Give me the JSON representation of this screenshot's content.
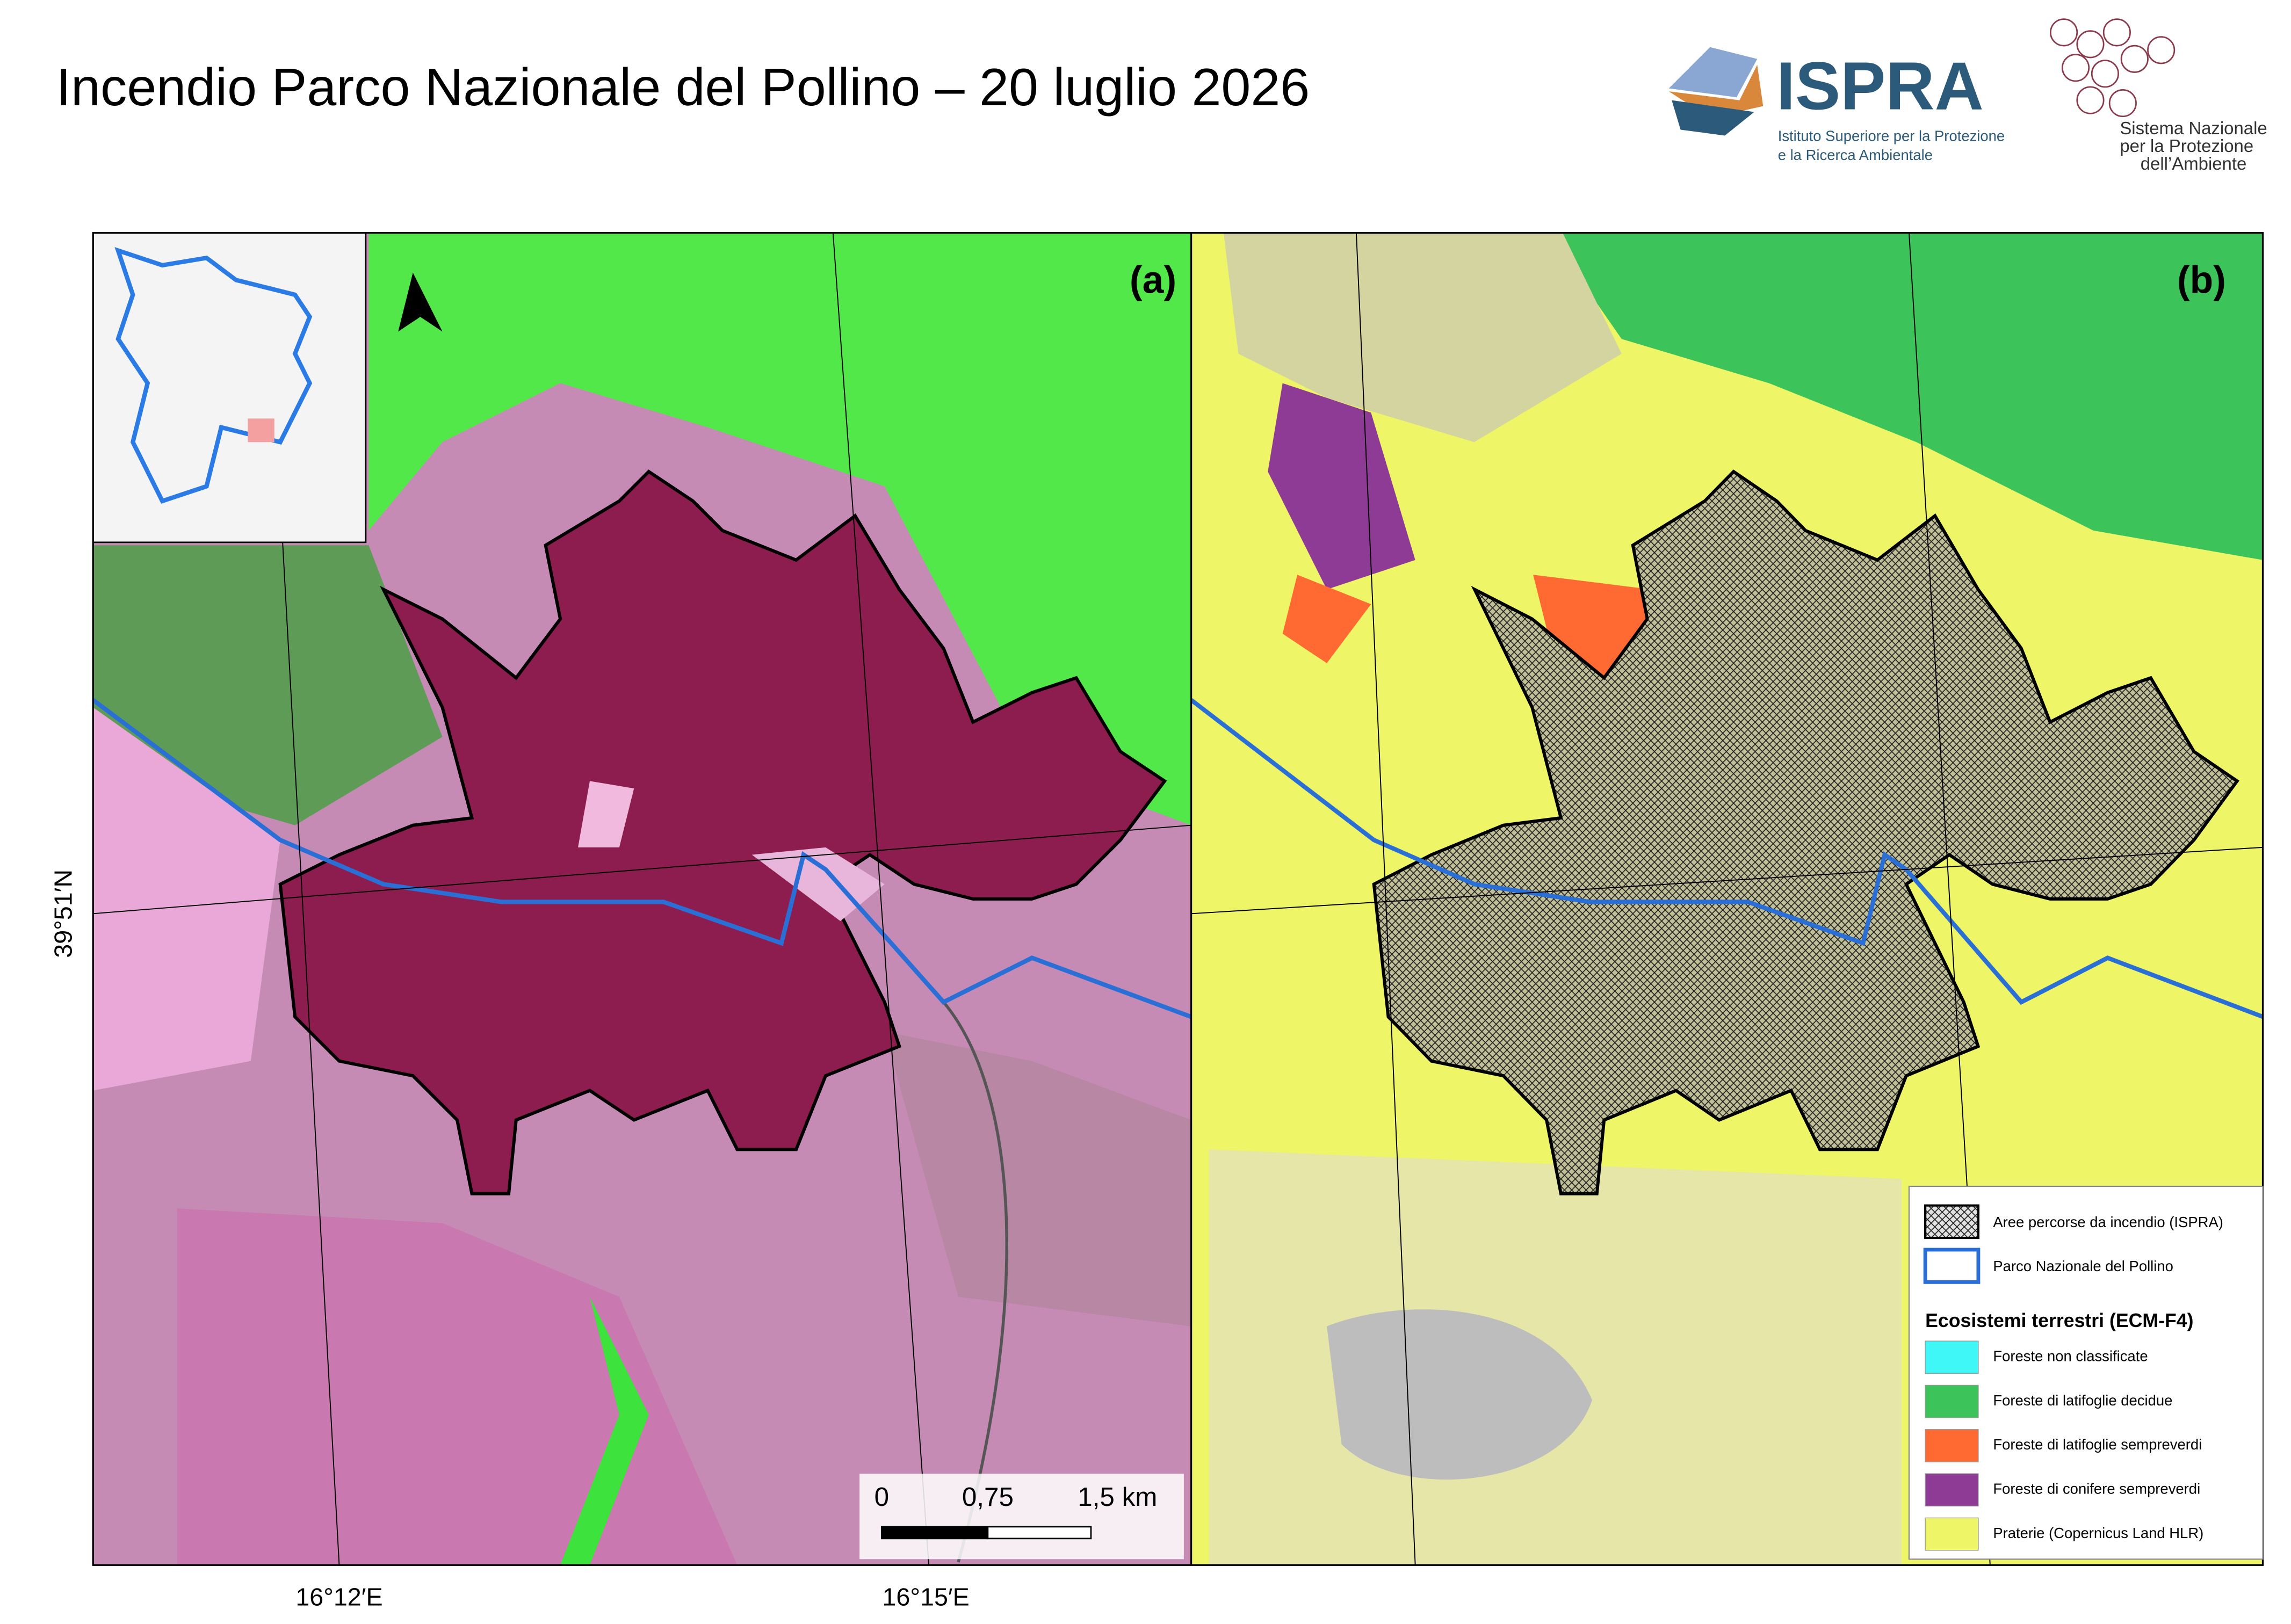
{
  "header": {
    "title": "Incendio Parco Nazionale del Pollino – 20 luglio 2026"
  },
  "logos": {
    "ispra": {
      "name": "ISPRA",
      "subtitle": [
        "Istituto Superiore per la Protezione",
        "e la Ricerca Ambientale"
      ]
    },
    "snpa": {
      "lines": [
        "Sistema Nazionale",
        "per la Protezione",
        "dell’Ambiente"
      ]
    }
  },
  "maps": {
    "panels": [
      "(a)",
      "(b)"
    ],
    "lat_label": "39°51′N",
    "lon_labels": [
      "16°12′E",
      "16°15′E"
    ],
    "scale_bar": [
      "0",
      "0,75",
      "1,5 km"
    ]
  },
  "legend": {
    "items": [
      "Aree percorse da incendio (ISPRA)",
      "Parco Nazionale del Pollino"
    ],
    "title": "Ecosistemi terrestri (ECM-F4)",
    "classes": [
      {
        "label": "Foreste non classificate",
        "color": "#3ff7f7"
      },
      {
        "label": "Foreste di latifoglie decidue",
        "color": "#3cc35a"
      },
      {
        "label": "Foreste di latifoglie sempreverdi",
        "color": "#ff6a33"
      },
      {
        "label": "Foreste di conifere sempreverdi",
        "color": "#8e3b96"
      },
      {
        "label": "Praterie (Copernicus Land HLR)",
        "color": "#eef566"
      }
    ]
  }
}
